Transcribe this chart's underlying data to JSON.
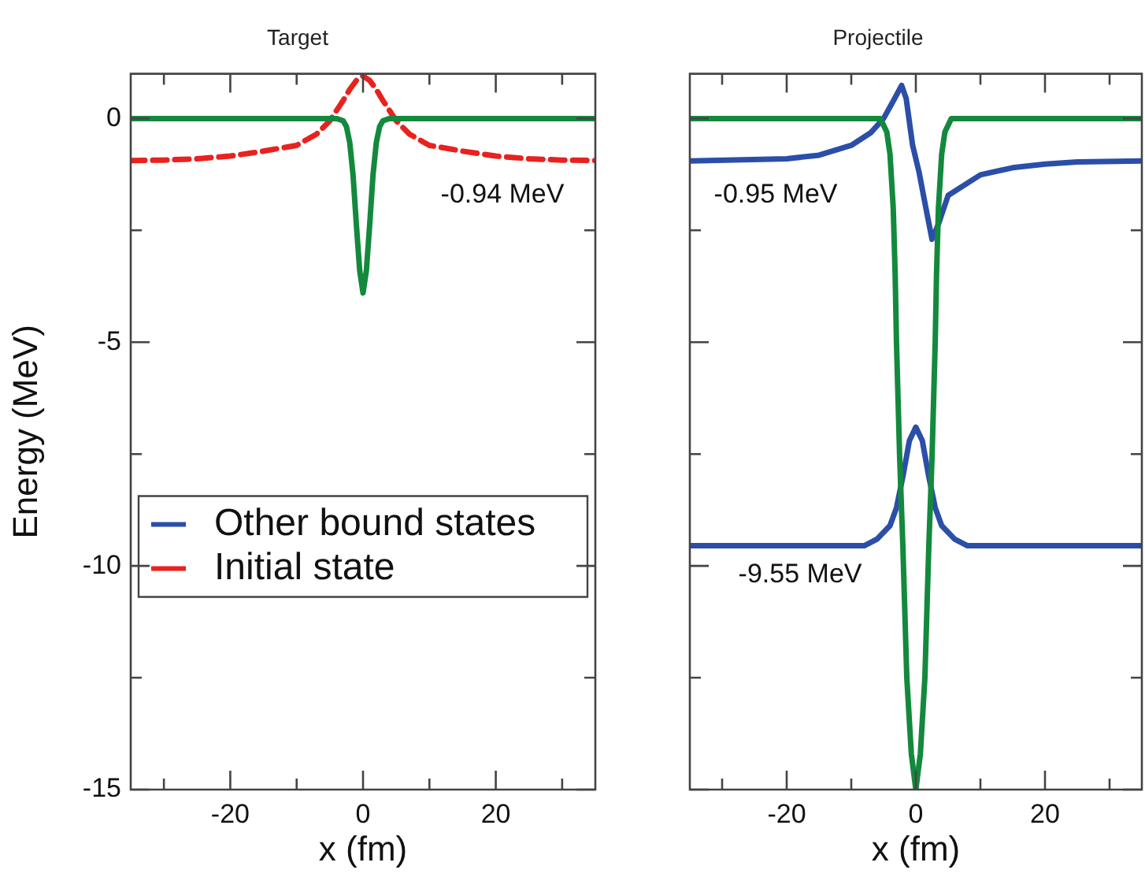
{
  "chart_data": [
    {
      "type": "line",
      "title": "Target",
      "xlabel": "x (fm)",
      "ylabel": "Energy (MeV)",
      "xlim": [
        -35,
        35
      ],
      "ylim": [
        -15,
        1
      ],
      "xticks": [
        {
          "value": -30,
          "label": null
        },
        -20,
        {
          "value": -10,
          "label": null
        },
        0,
        {
          "value": 10,
          "label": null
        },
        20,
        {
          "value": 30,
          "label": null
        }
      ],
      "yticks": [
        -15,
        {
          "value": -12.5,
          "label": null
        },
        -10,
        {
          "value": -7.5,
          "label": null
        },
        -5,
        {
          "value": -2.5,
          "label": null
        },
        0
      ],
      "grid": false,
      "legend": "left",
      "marker": "none",
      "series": [
        {
          "color": "#13893d",
          "x": [
            -35,
            -5,
            -4,
            -3,
            -2.5,
            -2,
            -1.5,
            -1,
            -0.5,
            0,
            0.5,
            1,
            1.5,
            2,
            2.5,
            3,
            4,
            5,
            35
          ],
          "values": [
            0,
            0,
            0,
            -0.05,
            -0.18,
            -0.54,
            -1.27,
            -2.38,
            -3.4,
            -3.9,
            -3.4,
            -2.38,
            -1.27,
            -0.54,
            -0.18,
            -0.05,
            0,
            0,
            0
          ]
        },
        {
          "name": "Initial state",
          "color": "#e8221f",
          "line_style": "dashed",
          "x": [
            -35,
            -30,
            -25,
            -20,
            -15,
            -10,
            -7,
            -5,
            -3,
            -2,
            -1,
            0,
            1,
            2,
            3,
            5,
            7,
            10,
            15,
            20,
            25,
            30,
            35
          ],
          "values": [
            -0.94,
            -0.93,
            -0.9,
            -0.84,
            -0.73,
            -0.6,
            -0.35,
            -0.05,
            0.4,
            0.65,
            0.85,
            0.95,
            0.85,
            0.65,
            0.4,
            -0.05,
            -0.35,
            -0.6,
            -0.73,
            -0.84,
            -0.9,
            -0.93,
            -0.94
          ]
        }
      ],
      "annotations": [
        "-0.94 MeV"
      ]
    },
    {
      "type": "line",
      "title": "Projectile",
      "xlabel": "x (fm)",
      "xlim": [
        -35,
        35
      ],
      "ylim": [
        -15,
        1
      ],
      "xticks": [
        {
          "value": -30,
          "label": null
        },
        -20,
        {
          "value": -10,
          "label": null
        },
        0,
        {
          "value": 10,
          "label": null
        },
        20,
        {
          "value": 30,
          "label": null
        }
      ],
      "yticks": [
        -15,
        {
          "value": -12.5,
          "label": null
        },
        -10,
        {
          "value": -7.5,
          "label": null
        },
        -5,
        {
          "value": -2.5,
          "label": null
        },
        0
      ],
      "tick_labels": "x",
      "grid": false,
      "marker": "none",
      "series": [
        {
          "color": "#13893d",
          "x": [
            -35,
            -5.5,
            -4.5,
            -4,
            -3.5,
            -3.2,
            -3,
            -2.5,
            -2,
            -1.4,
            -0.7,
            0,
            0.7,
            1.4,
            2,
            2.5,
            3,
            3.2,
            3.5,
            4,
            4.5,
            5.5,
            35
          ],
          "values": [
            0,
            0,
            -0.3,
            -0.8,
            -2,
            -3.5,
            -5,
            -7.6,
            -9.6,
            -12.5,
            -14.2,
            -15,
            -14.2,
            -12.5,
            -9.6,
            -7.6,
            -5,
            -3.5,
            -2,
            -0.8,
            -0.3,
            0,
            0
          ]
        },
        {
          "name": "Other bound states",
          "color": "#2b4ea8",
          "x": [
            -35,
            -20,
            -15,
            -10,
            -7,
            -5,
            -3.5,
            -2.2,
            -1.5,
            -0.5,
            0.5,
            1.5,
            2.5,
            3.5,
            5,
            10,
            15,
            20,
            25,
            35
          ],
          "values": [
            -0.95,
            -0.9,
            -0.82,
            -0.6,
            -0.32,
            0,
            0.39,
            0.74,
            0.45,
            -0.6,
            -1.2,
            -1.96,
            -2.7,
            -2.36,
            -1.72,
            -1.26,
            -1.1,
            -1.02,
            -0.97,
            -0.95
          ]
        },
        {
          "color": "#2b4ea8",
          "x": [
            -35,
            -8,
            -6,
            -4,
            -3,
            -2,
            -1,
            0,
            1,
            2,
            3,
            4,
            6,
            8,
            35
          ],
          "values": [
            -9.55,
            -9.55,
            -9.4,
            -9.1,
            -8.7,
            -8,
            -7.2,
            -6.9,
            -7.2,
            -8,
            -8.7,
            -9.1,
            -9.4,
            -9.55,
            -9.55
          ]
        }
      ],
      "annotations": [
        "-0.95 MeV",
        "-9.55 MeV"
      ]
    }
  ]
}
